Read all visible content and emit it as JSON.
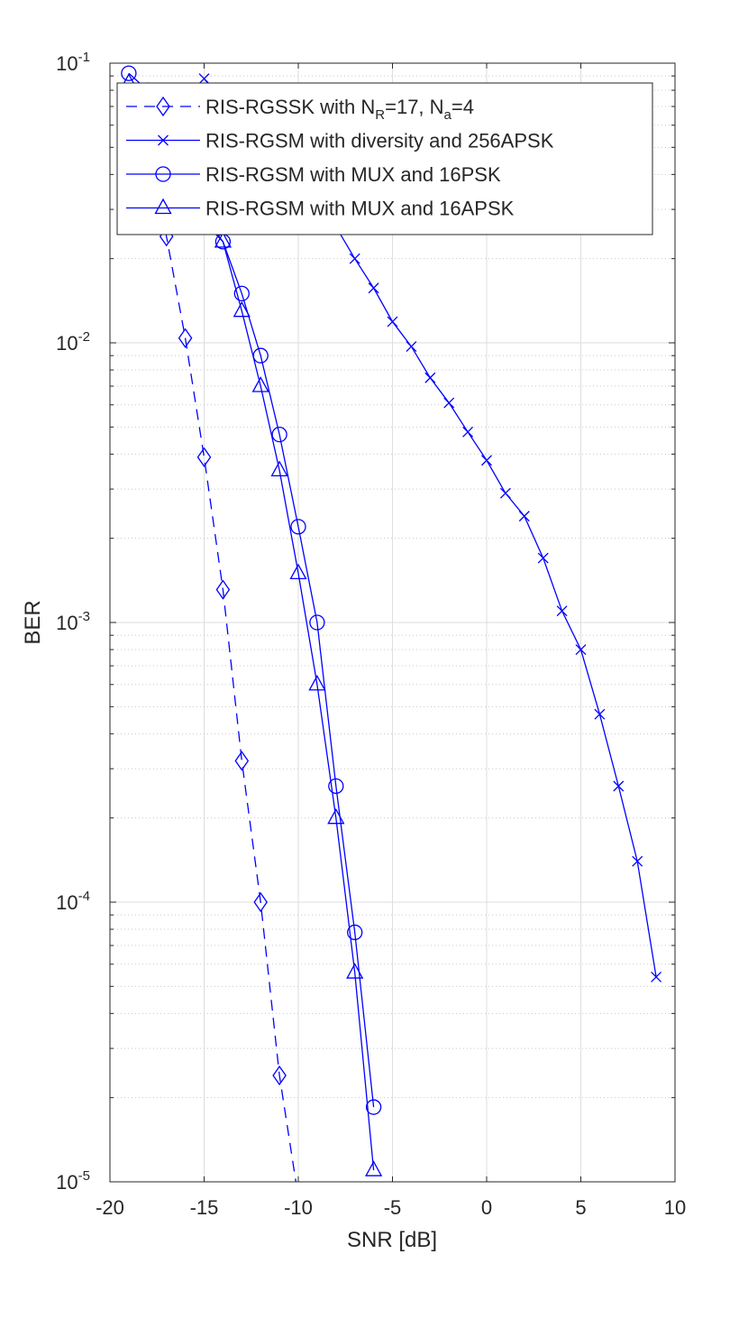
{
  "chart_data": {
    "type": "line",
    "title": "",
    "xlabel": "SNR [dB]",
    "ylabel": "BER",
    "xlim": [
      -20,
      10
    ],
    "ylim": [
      1e-05,
      0.1
    ],
    "yscale": "log",
    "grid": true,
    "legend_position": "top-right",
    "x_ticks": [
      {
        "value": -20,
        "label": "-20"
      },
      {
        "value": -15,
        "label": "-15"
      },
      {
        "value": -10,
        "label": "-10"
      },
      {
        "value": -5,
        "label": "-5"
      },
      {
        "value": 0,
        "label": "0"
      },
      {
        "value": 5,
        "label": "5"
      },
      {
        "value": 10,
        "label": "10"
      }
    ],
    "y_ticks": [
      {
        "value": 0.1,
        "base": "10",
        "exp": "-1"
      },
      {
        "value": 0.01,
        "base": "10",
        "exp": "-2"
      },
      {
        "value": 0.001,
        "base": "10",
        "exp": "-3"
      },
      {
        "value": 0.0001,
        "base": "10",
        "exp": "-4"
      },
      {
        "value": 1e-05,
        "base": "10",
        "exp": "-5"
      }
    ],
    "series": [
      {
        "name": "RIS-RGSSK with N_R=17, N_a=4",
        "legend_parts": [
          {
            "t": "RIS-RGSSK with N",
            "sub": false
          },
          {
            "t": "R",
            "sub": true
          },
          {
            "t": "=17, N",
            "sub": false
          },
          {
            "t": "a",
            "sub": true
          },
          {
            "t": "=4",
            "sub": false
          }
        ],
        "marker": "diamond",
        "line_style": "dashed",
        "color": "#0000ff",
        "x": [
          -18,
          -17,
          -16,
          -15,
          -14,
          -13,
          -12,
          -11,
          -10
        ],
        "y": [
          0.07,
          0.024,
          0.0104,
          0.0039,
          0.00131,
          0.00032,
          0.0001,
          2.4e-05,
          8.8e-06
        ]
      },
      {
        "name": "RIS-RGSM with diversity and 256APSK",
        "marker": "x",
        "line_style": "solid",
        "color": "#0000ff",
        "x": [
          -15,
          -14,
          -13,
          -12,
          -11,
          -10,
          -9,
          -8,
          -7,
          -6,
          -5,
          -4,
          -3,
          -2,
          -1,
          0,
          1,
          2,
          3,
          4,
          5,
          6,
          7,
          8,
          9
        ],
        "y": [
          0.088,
          0.073,
          0.063,
          0.052,
          0.043,
          0.037,
          0.031,
          0.026,
          0.02,
          0.0157,
          0.0119,
          0.0097,
          0.0075,
          0.0061,
          0.0048,
          0.0038,
          0.0029,
          0.0024,
          0.0017,
          0.0011,
          0.0008,
          0.00047,
          0.00026,
          0.00014,
          5.4e-05
        ]
      },
      {
        "name": "RIS-RGSM with MUX and 16PSK",
        "marker": "circle",
        "line_style": "solid",
        "color": "#0000ff",
        "x": [
          -19,
          -18,
          -17,
          -16,
          -15,
          -14,
          -13,
          -12,
          -11,
          -10,
          -9,
          -8,
          -7,
          -6
        ],
        "y": [
          0.092,
          0.08,
          0.055,
          0.038,
          0.028,
          0.023,
          0.015,
          0.009,
          0.0047,
          0.0022,
          0.001,
          0.00026,
          7.8e-05,
          1.85e-05
        ]
      },
      {
        "name": "RIS-RGSM with MUX and 16APSK",
        "marker": "triangle",
        "line_style": "solid",
        "color": "#0000ff",
        "x": [
          -19,
          -18,
          -17,
          -16,
          -15,
          -14,
          -13,
          -12,
          -11,
          -10,
          -9,
          -8,
          -7,
          -6
        ],
        "y": [
          0.085,
          0.072,
          0.052,
          0.036,
          0.027,
          0.023,
          0.013,
          0.007,
          0.0035,
          0.0015,
          0.0006,
          0.0002,
          5.6e-05,
          1.1e-05
        ]
      }
    ]
  }
}
